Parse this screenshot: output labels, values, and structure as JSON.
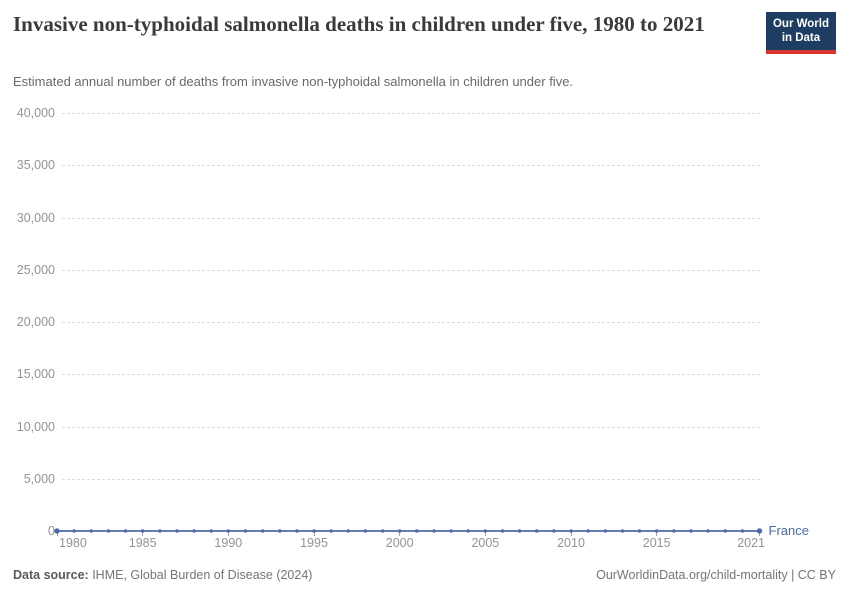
{
  "logo": {
    "line1": "Our World",
    "line2": "in Data",
    "bg_color": "#1d3d63",
    "bar_color": "#d8352f"
  },
  "chart_data": {
    "type": "line",
    "title": "Invasive non-typhoidal salmonella deaths in children under five, 1980 to 2021",
    "subtitle": "Estimated annual number of deaths from invasive non-typhoidal salmonella in children under five.",
    "xlabel": "",
    "ylabel": "",
    "xlim": [
      1980,
      2021
    ],
    "ylim": [
      0,
      40000
    ],
    "grid": "horizontal-dashed",
    "legend_position": "end-of-line",
    "x_ticks": [
      "1980",
      "1985",
      "1990",
      "1995",
      "2000",
      "2005",
      "2010",
      "2015",
      "2021"
    ],
    "y_ticks": [
      "0",
      "5,000",
      "10,000",
      "15,000",
      "20,000",
      "25,000",
      "30,000",
      "35,000",
      "40,000"
    ],
    "x": [
      1980,
      1981,
      1982,
      1983,
      1984,
      1985,
      1986,
      1987,
      1988,
      1989,
      1990,
      1991,
      1992,
      1993,
      1994,
      1995,
      1996,
      1997,
      1998,
      1999,
      2000,
      2001,
      2002,
      2003,
      2004,
      2005,
      2006,
      2007,
      2008,
      2009,
      2010,
      2011,
      2012,
      2013,
      2014,
      2015,
      2016,
      2017,
      2018,
      2019,
      2020,
      2021
    ],
    "series": [
      {
        "name": "France",
        "color": "#4c6ba8",
        "values": [
          0,
          0,
          0,
          0,
          0,
          0,
          0,
          0,
          0,
          0,
          0,
          0,
          0,
          0,
          0,
          0,
          0,
          0,
          0,
          0,
          0,
          0,
          0,
          0,
          0,
          0,
          0,
          0,
          0,
          0,
          0,
          0,
          0,
          0,
          0,
          0,
          0,
          0,
          0,
          0,
          0,
          0
        ]
      }
    ]
  },
  "footer": {
    "data_source_label": "Data source:",
    "data_source_value": " IHME, Global Burden of Disease (2024)",
    "credit": "OurWorldinData.org/child-mortality | CC BY"
  }
}
